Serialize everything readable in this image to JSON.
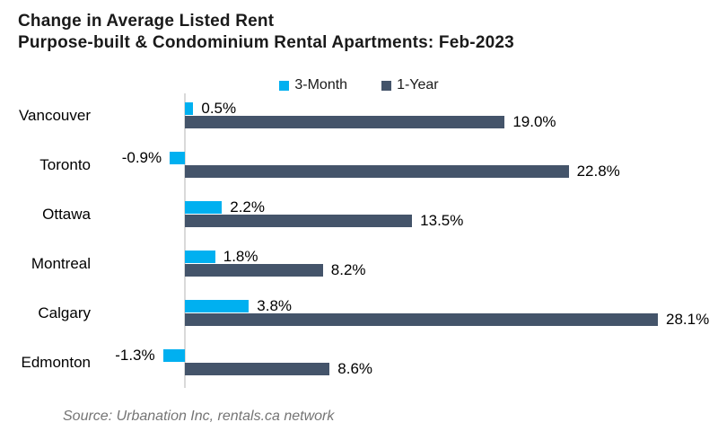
{
  "title": {
    "line1": "Change in Average Listed Rent",
    "line2": "Purpose-built & Condominium Rental Apartments: Feb-2023"
  },
  "legend": [
    {
      "label": "3-Month",
      "color": "#00b0f0"
    },
    {
      "label": "1-Year",
      "color": "#44546a"
    }
  ],
  "source": "Source: Urbanation Inc, rentals.ca network",
  "colors": {
    "three_month": "#00b0f0",
    "one_year": "#44546a",
    "axis_line": "#d9d9d9",
    "title_text": "#1a1a1a",
    "source_text": "#757575"
  },
  "chart_data": {
    "type": "bar",
    "orientation": "horizontal",
    "title": "Change in Average Listed Rent",
    "subtitle": "Purpose-built & Condominium Rental Apartments: Feb-2023",
    "categories": [
      "Vancouver",
      "Toronto",
      "Ottawa",
      "Montreal",
      "Calgary",
      "Edmonton"
    ],
    "series": [
      {
        "name": "3-Month",
        "color": "#00b0f0",
        "values": [
          0.5,
          -0.9,
          2.2,
          1.8,
          3.8,
          -1.3
        ],
        "labels": [
          "0.5%",
          "-0.9%",
          "2.2%",
          "1.8%",
          "3.8%",
          "-1.3%"
        ]
      },
      {
        "name": "1-Year",
        "color": "#44546a",
        "values": [
          19.0,
          22.8,
          13.5,
          8.2,
          28.1,
          8.6
        ],
        "labels": [
          "19.0%",
          "22.8%",
          "13.5%",
          "8.2%",
          "28.1%",
          "8.6%"
        ]
      }
    ],
    "value_suffix": "%",
    "xlim": [
      -2,
      30
    ],
    "grid": false,
    "legend_position": "top-center",
    "value_labels_visible": true
  }
}
